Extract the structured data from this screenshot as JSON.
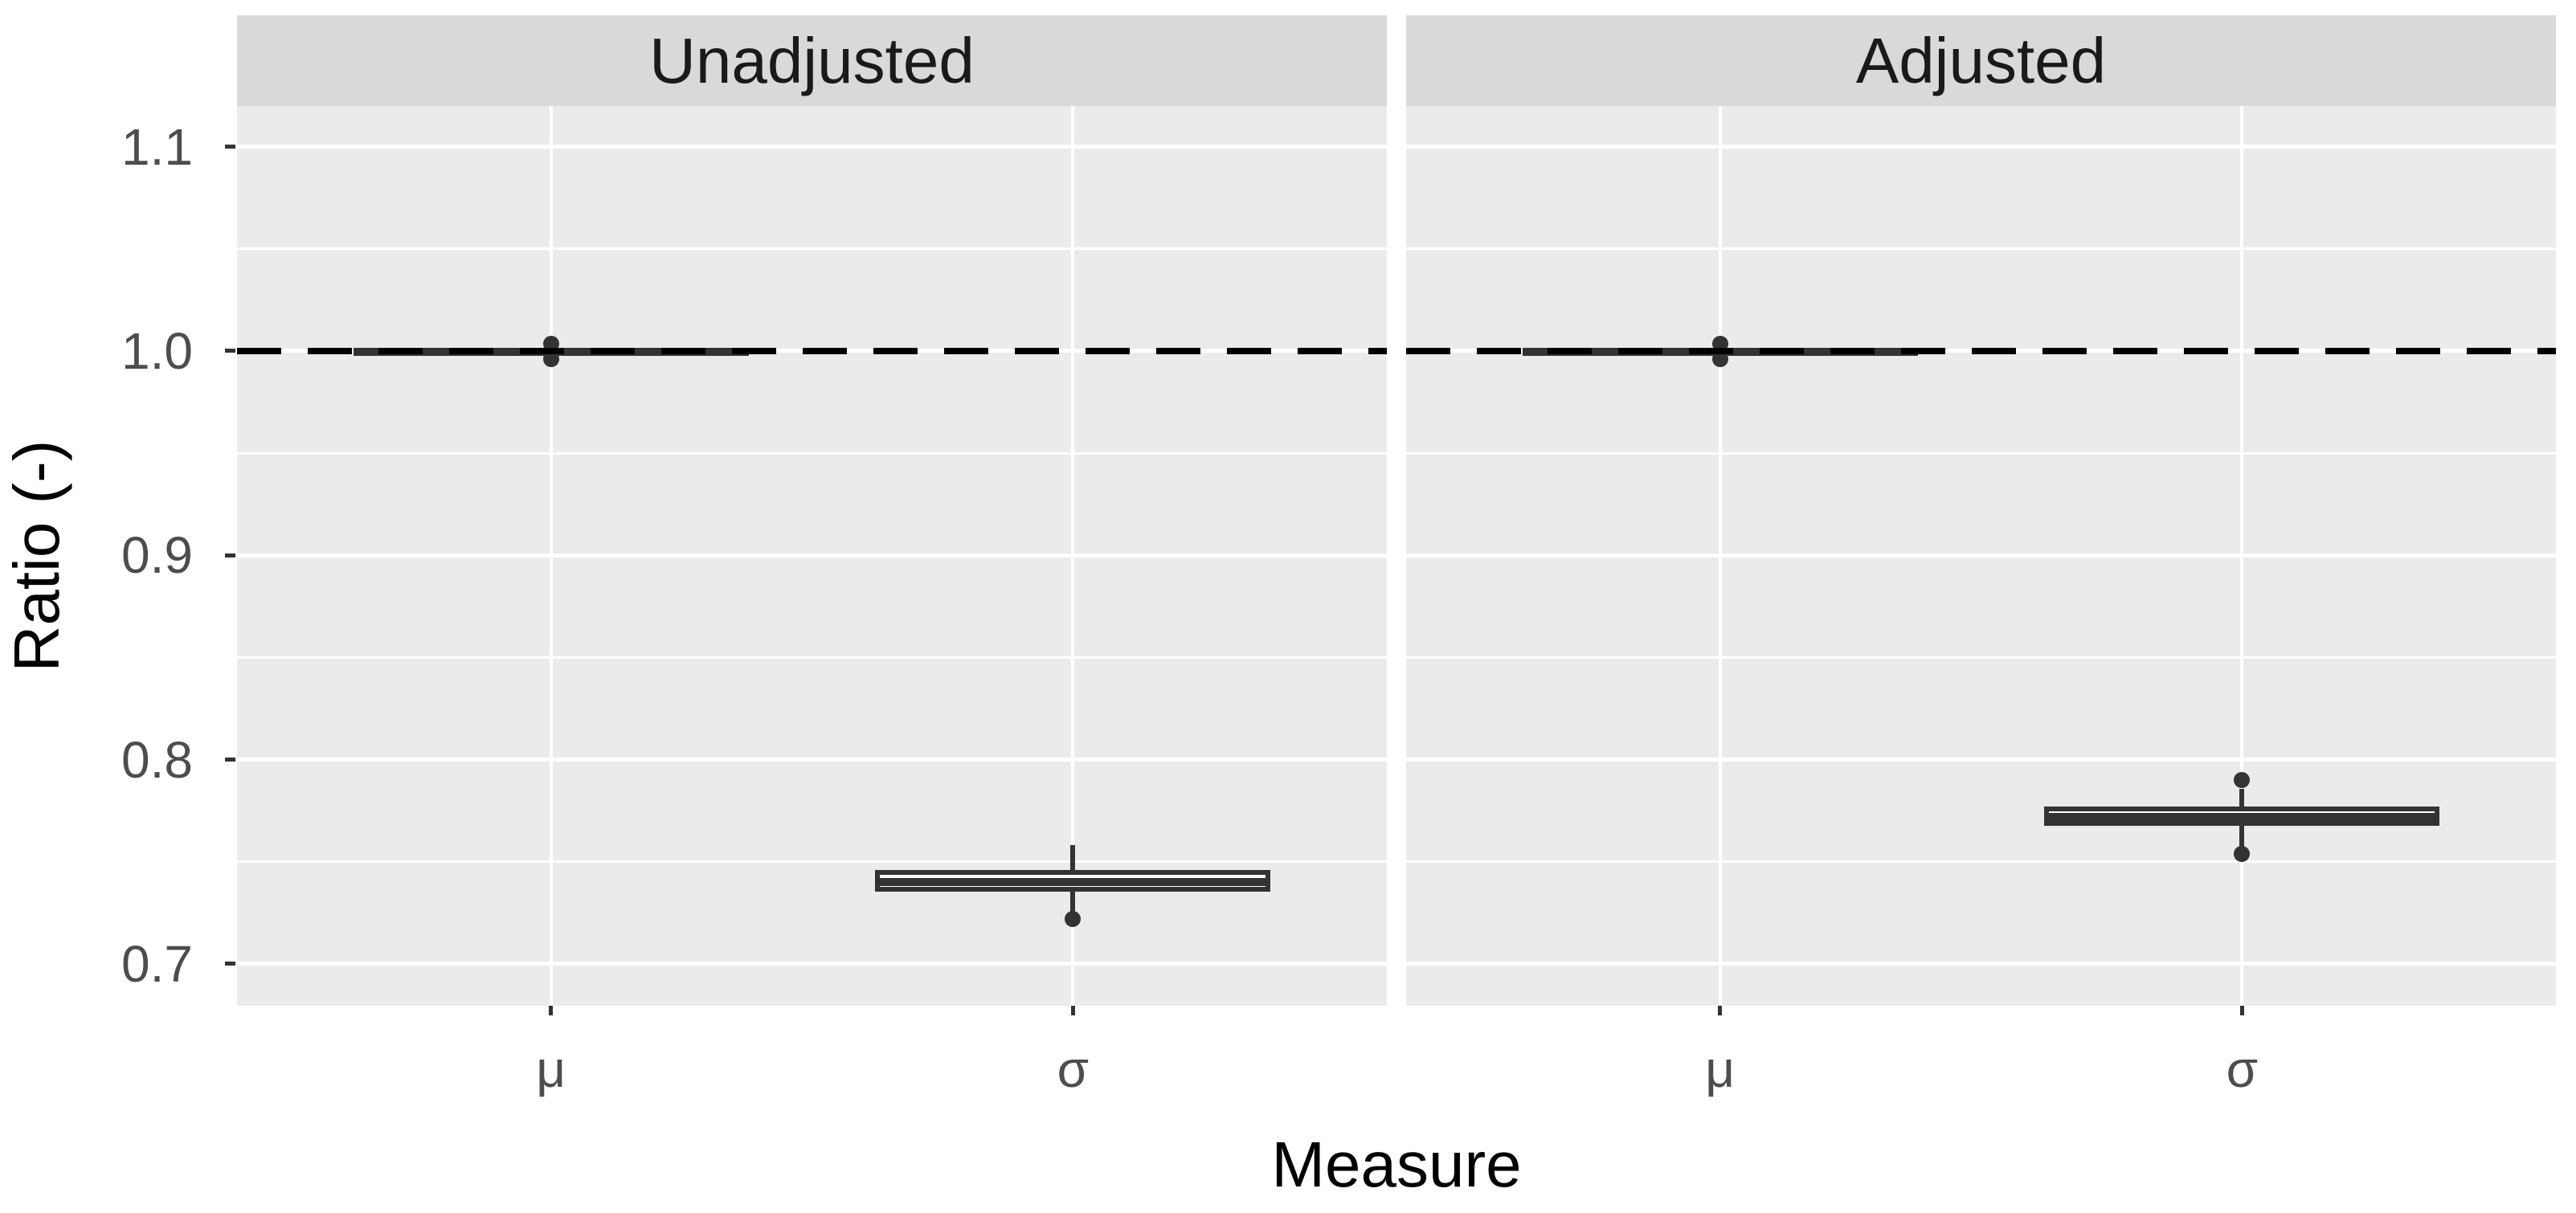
{
  "chart_data": {
    "type": "boxplot",
    "faceted": true,
    "x": {
      "title": "Measure",
      "categories": [
        "μ",
        "σ"
      ]
    },
    "y": {
      "title": "Ratio (-)",
      "major_ticks": [
        1.1,
        1.0,
        0.9,
        0.8,
        0.7
      ],
      "tick_labels": [
        "1.1",
        "1.0",
        "0.9",
        "0.8",
        "0.7"
      ],
      "minor_ticks": [
        1.05,
        0.95,
        0.85,
        0.75
      ],
      "range": [
        0.6795,
        1.1199
      ],
      "grid": "on"
    },
    "reference_line": {
      "value": 1.0,
      "style": "dashed",
      "color": "#000000"
    },
    "legend_position": "none",
    "facets": [
      {
        "label": "Unadjusted",
        "boxes": [
          {
            "category": "μ",
            "q1": 0.998,
            "median": 1.0,
            "q3": 1.0015,
            "whisker_low": 0.998,
            "whisker_high": 1.0015,
            "outliers": [
              1.0035,
              0.996
            ]
          },
          {
            "category": "σ",
            "q1": 0.7355,
            "median": 0.74,
            "q3": 0.746,
            "whisker_low": 0.7255,
            "whisker_high": 0.758,
            "outliers": [
              0.722
            ]
          }
        ]
      },
      {
        "label": "Adjusted",
        "boxes": [
          {
            "category": "μ",
            "q1": 0.998,
            "median": 1.0,
            "q3": 1.0015,
            "whisker_low": 0.998,
            "whisker_high": 1.0015,
            "outliers": [
              1.0035,
              0.996
            ]
          },
          {
            "category": "σ",
            "q1": 0.7675,
            "median": 0.772,
            "q3": 0.777,
            "whisker_low": 0.7575,
            "whisker_high": 0.7855,
            "outliers": [
              0.79,
              0.754
            ]
          }
        ]
      }
    ],
    "style": {
      "panel_bg": "#EBEBEB",
      "strip_bg": "#D9D9D9",
      "grid_color": "#FFFFFF",
      "box_color": "#333333",
      "axis_text_color": "#4D4D4D",
      "title_color": "#000000",
      "strip_text_color": "#1A1A1A"
    }
  }
}
